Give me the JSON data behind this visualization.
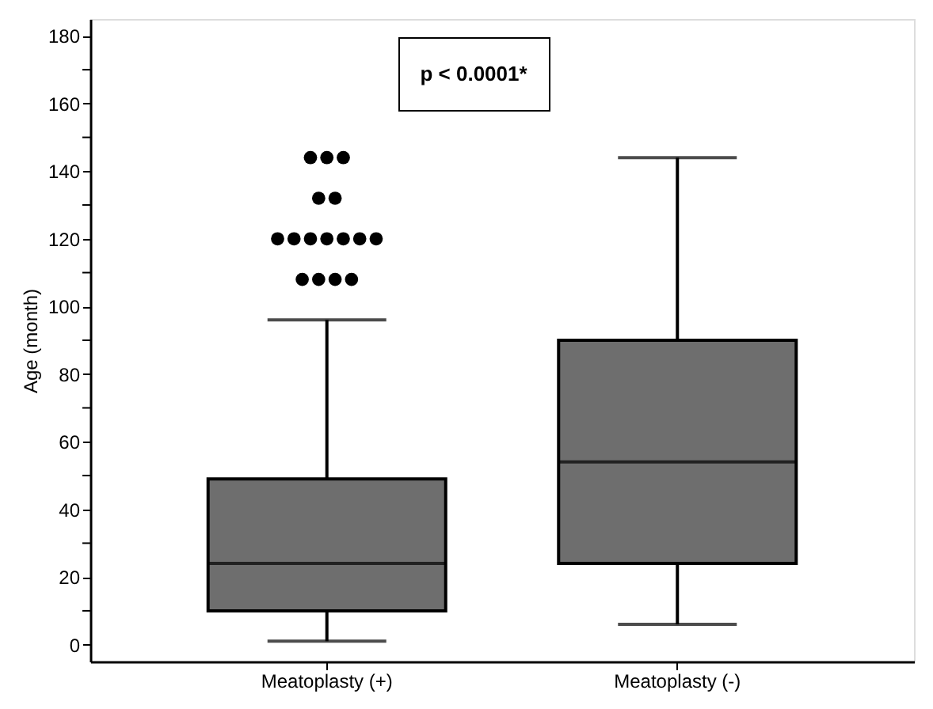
{
  "chart_data": {
    "type": "box",
    "categories": [
      "Meatoplasty (+)",
      "Meatoplasty (-)"
    ],
    "ylabel": "Age (month)",
    "series": [
      {
        "color": "#6e6e6e",
        "boxes": [
          {
            "low": 1,
            "q1": 10,
            "median": 24,
            "q3": 49,
            "high": 96,
            "outliers": [
              108,
              108,
              108,
              108,
              120,
              120,
              120,
              120,
              120,
              120,
              120,
              132,
              132,
              144,
              144,
              144
            ]
          },
          {
            "low": 6,
            "q1": 24,
            "median": 54,
            "q3": 90,
            "high": 144
          }
        ]
      }
    ],
    "ylim": [
      -5,
      185
    ],
    "yticks": [
      0,
      {
        "value": 10,
        "label": null
      },
      20,
      {
        "value": 30,
        "label": null
      },
      40,
      {
        "value": 50,
        "label": null
      },
      60,
      {
        "value": 70,
        "label": null
      },
      80,
      {
        "value": 90,
        "label": null
      },
      100,
      {
        "value": 110,
        "label": null
      },
      120,
      {
        "value": 130,
        "label": null
      },
      140,
      {
        "value": 150,
        "label": null
      },
      160,
      {
        "value": 170,
        "label": null
      },
      180
    ],
    "annotations": [
      "p < 0.0001*"
    ],
    "grid": false,
    "marker": "circle"
  }
}
